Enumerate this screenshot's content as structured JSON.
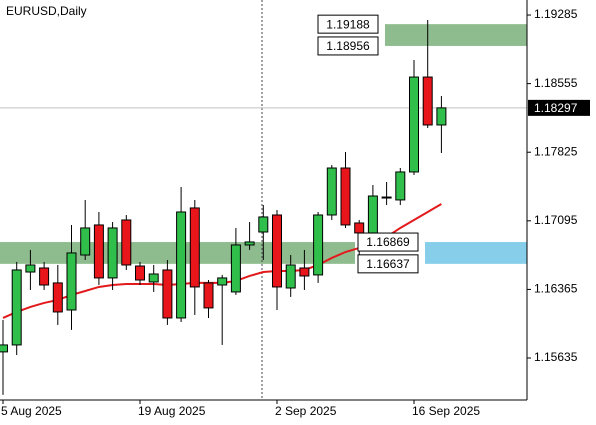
{
  "chart_data": {
    "type": "candlestick",
    "title": "EURUSD,Daily",
    "categories": [
      "5 Aug 2025",
      null,
      null,
      null,
      null,
      null,
      null,
      null,
      null,
      null,
      "19 Aug 2025",
      null,
      null,
      null,
      null,
      null,
      null,
      null,
      null,
      null,
      "2 Sep 2025",
      null,
      null,
      null,
      null,
      null,
      null,
      null,
      null,
      null,
      "16 Sep 2025",
      null,
      null
    ],
    "open": [
      1.157,
      1.15774,
      1.1655,
      1.16593,
      1.16434,
      1.16146,
      1.16731,
      1.17051,
      1.16487,
      1.17104,
      1.16614,
      1.16444,
      1.16572,
      1.16061,
      1.17232,
      1.16434,
      1.16412,
      1.16338,
      1.16838,
      1.16976,
      1.17157,
      1.1638,
      1.16593,
      1.16519,
      1.17157,
      1.17657,
      1.17072,
      1.16966,
      1.17338,
      1.17317,
      1.17615,
      1.18625,
      1.18115
    ],
    "high": [
      1.1604,
      1.16657,
      1.16785,
      1.16657,
      1.16625,
      1.17051,
      1.17317,
      1.17189,
      1.17082,
      1.17157,
      1.16657,
      1.16625,
      1.16678,
      1.17455,
      1.17317,
      1.16465,
      1.16519,
      1.17019,
      1.17082,
      1.17263,
      1.1721,
      1.16731,
      1.16785,
      1.17189,
      1.17689,
      1.17827,
      1.17104,
      1.17476,
      1.17508,
      1.17657,
      1.18806,
      1.19232,
      1.18423
    ],
    "low": [
      1.15242,
      1.15667,
      1.16359,
      1.16359,
      1.15987,
      1.15934,
      1.16678,
      1.16412,
      1.16359,
      1.16572,
      1.16412,
      1.16338,
      1.15987,
      1.16018,
      1.16093,
      1.16061,
      1.15774,
      1.16306,
      1.16785,
      1.16678,
      1.16146,
      1.16285,
      1.16359,
      1.16434,
      1.17104,
      1.17019,
      1.16731,
      1.16891,
      1.17263,
      1.17263,
      1.17583,
      1.18083,
      1.17817
    ],
    "close": [
      1.15774,
      1.16572,
      1.16625,
      1.16412,
      1.16125,
      1.16753,
      1.17019,
      1.16487,
      1.17019,
      1.16625,
      1.16465,
      1.16529,
      1.16061,
      1.17189,
      1.16391,
      1.16168,
      1.16487,
      1.16838,
      1.1687,
      1.17136,
      1.16391,
      1.16625,
      1.16508,
      1.17157,
      1.17657,
      1.17051,
      1.16966,
      1.17359,
      1.17348,
      1.17615,
      1.18625,
      1.18115,
      1.18297
    ],
    "up_color": "#2fbf4a",
    "down_color": "#e8151b",
    "ma": {
      "color": "#e31a1c",
      "values": [
        1.16061,
        1.16125,
        1.16178,
        1.16221,
        1.16253,
        1.16306,
        1.16348,
        1.16391,
        1.16412,
        1.16423,
        1.16423,
        1.16423,
        1.16412,
        1.16423,
        1.16434,
        1.16434,
        1.16434,
        1.16455,
        1.16508,
        1.1655,
        1.16561,
        1.16561,
        1.16572,
        1.16625,
        1.167,
        1.16763,
        1.16806,
        1.16859,
        1.16923,
        1.17019,
        1.17104,
        1.17189,
        1.17274
      ]
    },
    "zones": [
      {
        "top": 1.19188,
        "bottom": 1.18956,
        "color": "#8fbc8f"
      },
      {
        "top": 1.16869,
        "bottom": 1.16637,
        "color": "#8fbc8f"
      },
      {
        "top": 1.16869,
        "bottom": 1.16637,
        "color": "#87ceeb"
      }
    ],
    "last_price": 1.18297,
    "ylim": [
      1.15188,
      1.19445
    ],
    "yticks": [
      1.19285,
      1.18555,
      1.17825,
      1.17095,
      1.16365,
      1.15635
    ]
  }
}
